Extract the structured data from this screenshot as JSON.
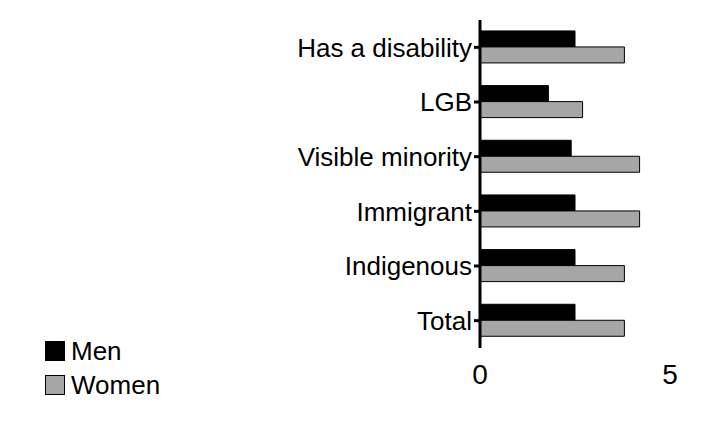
{
  "chart_data": {
    "type": "bar",
    "orientation": "horizontal",
    "categories": [
      "Has a disability",
      "LGB",
      "Visible minority",
      "Immigrant",
      "Indigenous",
      "Total"
    ],
    "series": [
      {
        "name": "Men",
        "color": "#000000",
        "values": [
          2.5,
          1.8,
          2.4,
          2.5,
          2.5,
          2.5
        ]
      },
      {
        "name": "Women",
        "color": "#a6a6a6",
        "values": [
          3.8,
          2.7,
          4.2,
          4.2,
          3.8,
          3.8
        ]
      }
    ],
    "xlim": [
      0,
      5
    ],
    "xticks": [
      0,
      5
    ],
    "legend": "lower left",
    "grid": false
  }
}
